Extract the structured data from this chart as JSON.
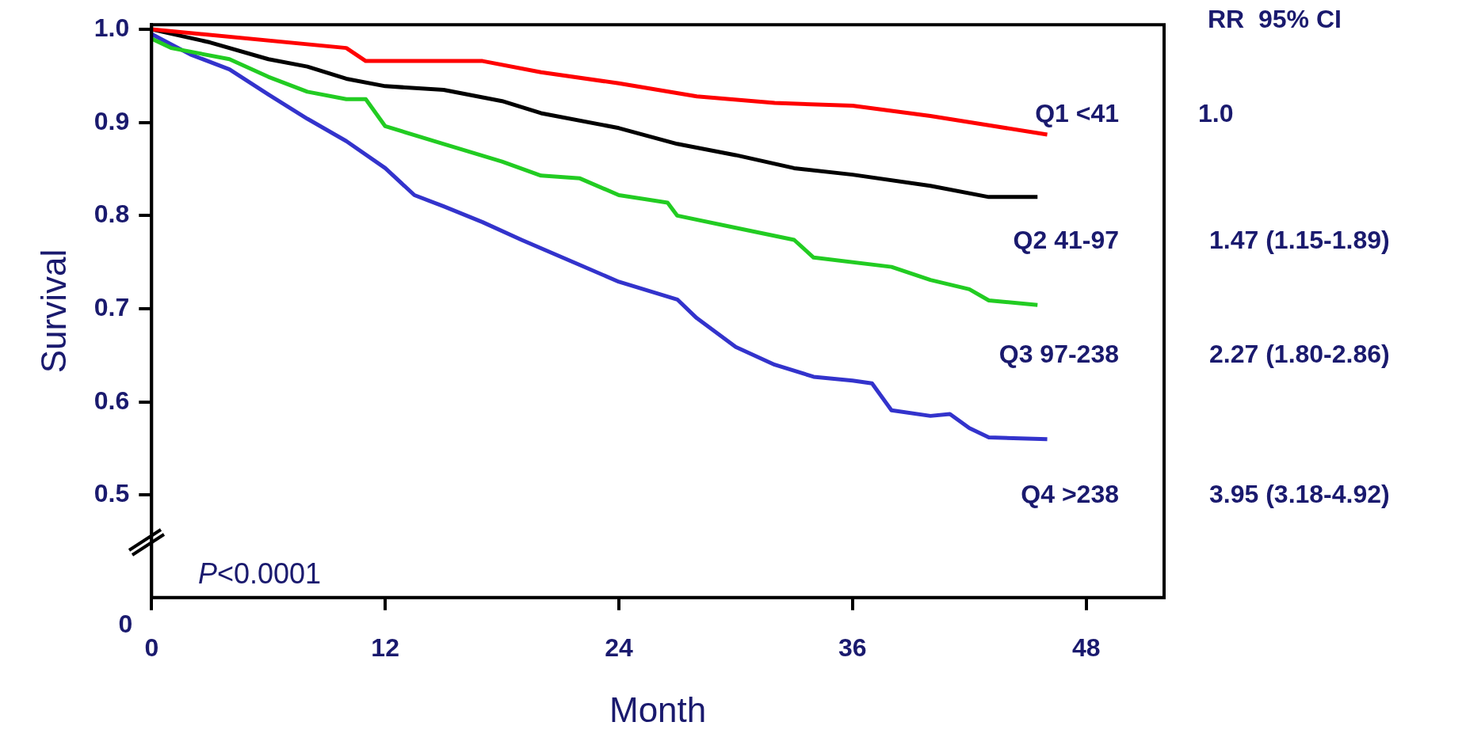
{
  "chart_data": {
    "type": "line",
    "xlabel": "Month",
    "ylabel": "Survival",
    "xlim": [
      0,
      52
    ],
    "xticks": [
      0,
      12,
      24,
      36,
      48
    ],
    "ylim": [
      0.39,
      1.005
    ],
    "yticks": [
      0.5,
      0.6,
      0.7,
      0.8,
      0.9,
      {
        "value": 1.0,
        "label": "1.0"
      }
    ],
    "grid": false,
    "legend": false,
    "marker": "none",
    "line_style": "solid",
    "series": [
      {
        "name": "Q1 <41",
        "color": "#ff0000",
        "x": [
          0,
          10,
          11,
          12,
          17,
          20,
          24,
          28,
          32,
          36,
          40,
          43,
          46
        ],
        "values": [
          1.0,
          0.98,
          0.966,
          0.966,
          0.966,
          0.954,
          0.942,
          0.928,
          0.921,
          0.918,
          0.907,
          0.897,
          0.887
        ]
      },
      {
        "name": "Q2 41-97",
        "color": "#000000",
        "x": [
          0,
          3,
          6,
          8,
          10,
          12,
          15,
          18,
          20,
          24,
          27,
          30,
          33,
          36,
          40,
          43,
          45.5
        ],
        "values": [
          1.0,
          0.986,
          0.968,
          0.96,
          0.947,
          0.939,
          0.935,
          0.923,
          0.91,
          0.894,
          0.877,
          0.865,
          0.851,
          0.844,
          0.832,
          0.82,
          0.82
        ]
      },
      {
        "name": "Q3 97-238",
        "color": "#22cc22",
        "x": [
          0,
          1,
          4,
          6,
          8,
          10,
          11,
          12,
          15,
          18,
          20,
          22,
          24,
          26.5,
          27,
          30,
          33,
          34,
          38,
          40,
          42,
          43,
          45.5
        ],
        "values": [
          0.99,
          0.98,
          0.968,
          0.949,
          0.933,
          0.925,
          0.925,
          0.896,
          0.877,
          0.858,
          0.843,
          0.84,
          0.822,
          0.814,
          0.8,
          0.787,
          0.774,
          0.755,
          0.745,
          0.731,
          0.721,
          0.709,
          0.704
        ]
      },
      {
        "name": "Q4 >238",
        "color": "#3333cc",
        "x": [
          0,
          2,
          4,
          6,
          8,
          10,
          12,
          13.5,
          15,
          17,
          19,
          22,
          24,
          27,
          28,
          30,
          32,
          34,
          36,
          37,
          38,
          40,
          41,
          42,
          43,
          46
        ],
        "values": [
          0.995,
          0.973,
          0.957,
          0.93,
          0.904,
          0.88,
          0.851,
          0.822,
          0.81,
          0.793,
          0.774,
          0.747,
          0.729,
          0.71,
          0.69,
          0.659,
          0.64,
          0.627,
          0.623,
          0.62,
          0.591,
          0.585,
          0.587,
          0.572,
          0.562,
          0.56
        ]
      }
    ],
    "annotations": [
      "0",
      "P<0.0001",
      "RR  95% CI",
      "1.0",
      "1.47 (1.15-1.89)",
      "2.27 (1.80-2.86)",
      "3.95 (3.18-4.92)"
    ]
  }
}
